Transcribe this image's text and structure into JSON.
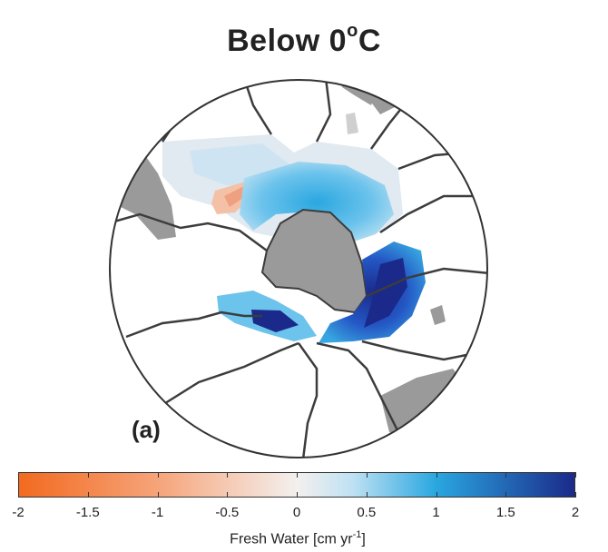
{
  "title": {
    "main": "Below 0",
    "degree": "o",
    "unit": "C"
  },
  "panel_label": "(a)",
  "colorbar": {
    "ticks": [
      "-2",
      "-1.5",
      "-1",
      "-0.5",
      "0",
      "0.5",
      "1",
      "1.5",
      "2"
    ],
    "label_prefix": "Fresh Water [cm yr",
    "label_exp": "-1",
    "label_suffix": "]",
    "colors": {
      "neg_max": "#f26a1f",
      "neg_mid": "#f6a47a",
      "zero": "#f4f0ee",
      "pos_low": "#bfe1f3",
      "pos_mid": "#2aa7e0",
      "pos_max": "#1b2a8a"
    }
  },
  "map": {
    "projection": "south-polar-stereographic",
    "land_color": "#9a9a9a",
    "ocean_color": "#ffffff",
    "basin_line_color": "#3c3c3c"
  }
}
